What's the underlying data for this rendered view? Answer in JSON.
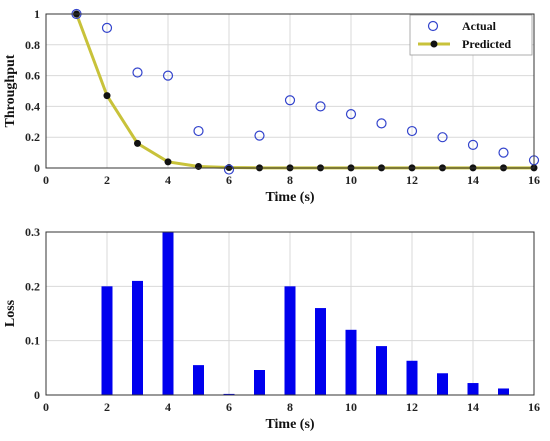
{
  "chart_data": [
    {
      "type": "line",
      "xlabel": "Time (s)",
      "ylabel": "Throughput",
      "xlim": [
        0,
        16
      ],
      "ylim": [
        0,
        1
      ],
      "xticks": [
        0,
        2,
        4,
        6,
        8,
        10,
        12,
        14,
        16
      ],
      "yticks": [
        0,
        0.2,
        0.4,
        0.6,
        0.8,
        1
      ],
      "grid": true,
      "legend_position": "top-right",
      "series": [
        {
          "name": "Actual",
          "style": "scatter-open-circle",
          "color": "#3344cc",
          "x": [
            1,
            2,
            3,
            4,
            5,
            6,
            7,
            8,
            9,
            10,
            11,
            12,
            13,
            14,
            15,
            16
          ],
          "y": [
            1.0,
            0.91,
            0.62,
            0.6,
            0.24,
            -0.01,
            0.21,
            0.44,
            0.4,
            0.35,
            0.29,
            0.24,
            0.2,
            0.15,
            0.1,
            0.05
          ]
        },
        {
          "name": "Predicted",
          "style": "line-with-dots",
          "color": "#c8c23a",
          "marker_color": "#111111",
          "x": [
            1,
            2,
            3,
            4,
            5,
            6,
            7,
            8,
            9,
            10,
            11,
            12,
            13,
            14,
            15,
            16
          ],
          "y": [
            1.0,
            0.47,
            0.16,
            0.04,
            0.01,
            0.003,
            0.001,
            0.001,
            0.001,
            0.001,
            0.001,
            0.001,
            0.001,
            0.001,
            0.001,
            0.001
          ]
        }
      ]
    },
    {
      "type": "bar",
      "xlabel": "Time (s)",
      "ylabel": "Loss",
      "xlim": [
        0,
        16
      ],
      "ylim": [
        0,
        0.3
      ],
      "xticks": [
        0,
        2,
        4,
        6,
        8,
        10,
        12,
        14,
        16
      ],
      "yticks": [
        0,
        0.1,
        0.2,
        0.3
      ],
      "grid": true,
      "color": "#0000ee",
      "x": [
        1,
        2,
        3,
        4,
        5,
        6,
        7,
        8,
        9,
        10,
        11,
        12,
        13,
        14,
        15
      ],
      "values": [
        0.0,
        0.2,
        0.21,
        0.3,
        0.055,
        0.002,
        0.046,
        0.2,
        0.16,
        0.12,
        0.09,
        0.063,
        0.04,
        0.022,
        0.012
      ]
    }
  ]
}
